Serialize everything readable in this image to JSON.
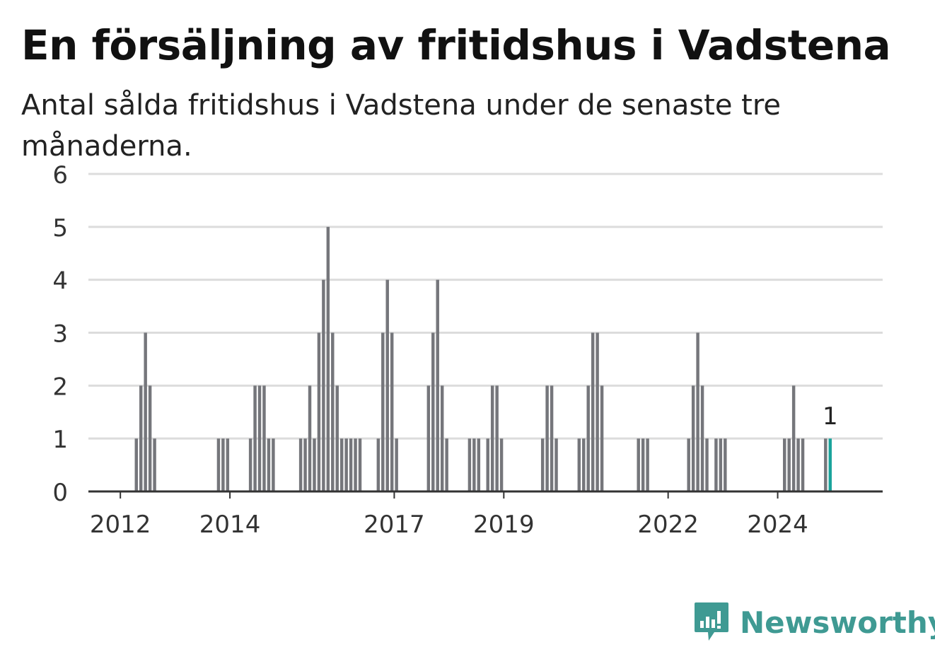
{
  "header": {
    "title": "En försäljning av fritidshus i Vadstena",
    "subtitle": "Antal sålda fritidshus i Vadstena under de senaste tre månaderna."
  },
  "brand": {
    "name": "Newsworthy",
    "icon": "newsworthy-chat-bars-icon",
    "color": "#3f9a93"
  },
  "colors": {
    "bar": "#75767b",
    "highlight": "#1aa39b",
    "grid": "#dcdcdc",
    "axis": "#333333",
    "text": "#333333"
  },
  "chart_data": {
    "type": "bar",
    "title": "En försäljning av fritidshus i Vadstena",
    "subtitle": "Antal sålda fritidshus i Vadstena under de senaste tre månaderna.",
    "xlabel": "",
    "ylabel": "",
    "x_axis": "time (monthly)",
    "x_range": [
      "2011-06",
      "2025-12"
    ],
    "ylim": [
      0,
      6
    ],
    "yticks": [
      0,
      1,
      2,
      3,
      4,
      5,
      6
    ],
    "xticks": [
      {
        "label": "2012",
        "date": "2012-01"
      },
      {
        "label": "2014",
        "date": "2014-01"
      },
      {
        "label": "2017",
        "date": "2017-01"
      },
      {
        "label": "2019",
        "date": "2019-01"
      },
      {
        "label": "2022",
        "date": "2022-01"
      },
      {
        "label": "2024",
        "date": "2024-01"
      }
    ],
    "grid": true,
    "legend": false,
    "annotation": {
      "date": "2024-12",
      "value": 1,
      "text": "1"
    },
    "highlight_date": "2024-12",
    "points": [
      {
        "date": "2012-04",
        "value": 1
      },
      {
        "date": "2012-05",
        "value": 2
      },
      {
        "date": "2012-06",
        "value": 3
      },
      {
        "date": "2012-07",
        "value": 2
      },
      {
        "date": "2012-08",
        "value": 1
      },
      {
        "date": "2013-10",
        "value": 1
      },
      {
        "date": "2013-11",
        "value": 1
      },
      {
        "date": "2013-12",
        "value": 1
      },
      {
        "date": "2014-05",
        "value": 1
      },
      {
        "date": "2014-06",
        "value": 2
      },
      {
        "date": "2014-07",
        "value": 2
      },
      {
        "date": "2014-08",
        "value": 2
      },
      {
        "date": "2014-09",
        "value": 1
      },
      {
        "date": "2014-10",
        "value": 1
      },
      {
        "date": "2015-04",
        "value": 1
      },
      {
        "date": "2015-05",
        "value": 1
      },
      {
        "date": "2015-06",
        "value": 2
      },
      {
        "date": "2015-07",
        "value": 1
      },
      {
        "date": "2015-08",
        "value": 3
      },
      {
        "date": "2015-09",
        "value": 4
      },
      {
        "date": "2015-10",
        "value": 5
      },
      {
        "date": "2015-11",
        "value": 3
      },
      {
        "date": "2015-12",
        "value": 2
      },
      {
        "date": "2016-01",
        "value": 1
      },
      {
        "date": "2016-02",
        "value": 1
      },
      {
        "date": "2016-03",
        "value": 1
      },
      {
        "date": "2016-04",
        "value": 1
      },
      {
        "date": "2016-05",
        "value": 1
      },
      {
        "date": "2016-09",
        "value": 1
      },
      {
        "date": "2016-10",
        "value": 3
      },
      {
        "date": "2016-11",
        "value": 4
      },
      {
        "date": "2016-12",
        "value": 3
      },
      {
        "date": "2017-01",
        "value": 1
      },
      {
        "date": "2017-08",
        "value": 2
      },
      {
        "date": "2017-09",
        "value": 3
      },
      {
        "date": "2017-10",
        "value": 4
      },
      {
        "date": "2017-11",
        "value": 2
      },
      {
        "date": "2017-12",
        "value": 1
      },
      {
        "date": "2018-05",
        "value": 1
      },
      {
        "date": "2018-06",
        "value": 1
      },
      {
        "date": "2018-07",
        "value": 1
      },
      {
        "date": "2018-09",
        "value": 1
      },
      {
        "date": "2018-10",
        "value": 2
      },
      {
        "date": "2018-11",
        "value": 2
      },
      {
        "date": "2018-12",
        "value": 1
      },
      {
        "date": "2019-09",
        "value": 1
      },
      {
        "date": "2019-10",
        "value": 2
      },
      {
        "date": "2019-11",
        "value": 2
      },
      {
        "date": "2019-12",
        "value": 1
      },
      {
        "date": "2020-05",
        "value": 1
      },
      {
        "date": "2020-06",
        "value": 1
      },
      {
        "date": "2020-07",
        "value": 2
      },
      {
        "date": "2020-08",
        "value": 3
      },
      {
        "date": "2020-09",
        "value": 3
      },
      {
        "date": "2020-10",
        "value": 2
      },
      {
        "date": "2021-06",
        "value": 1
      },
      {
        "date": "2021-07",
        "value": 1
      },
      {
        "date": "2021-08",
        "value": 1
      },
      {
        "date": "2022-05",
        "value": 1
      },
      {
        "date": "2022-06",
        "value": 2
      },
      {
        "date": "2022-07",
        "value": 3
      },
      {
        "date": "2022-08",
        "value": 2
      },
      {
        "date": "2022-09",
        "value": 1
      },
      {
        "date": "2022-11",
        "value": 1
      },
      {
        "date": "2022-12",
        "value": 1
      },
      {
        "date": "2023-01",
        "value": 1
      },
      {
        "date": "2024-02",
        "value": 1
      },
      {
        "date": "2024-03",
        "value": 1
      },
      {
        "date": "2024-04",
        "value": 2
      },
      {
        "date": "2024-05",
        "value": 1
      },
      {
        "date": "2024-06",
        "value": 1
      },
      {
        "date": "2024-11",
        "value": 1
      },
      {
        "date": "2024-12",
        "value": 1
      }
    ]
  }
}
